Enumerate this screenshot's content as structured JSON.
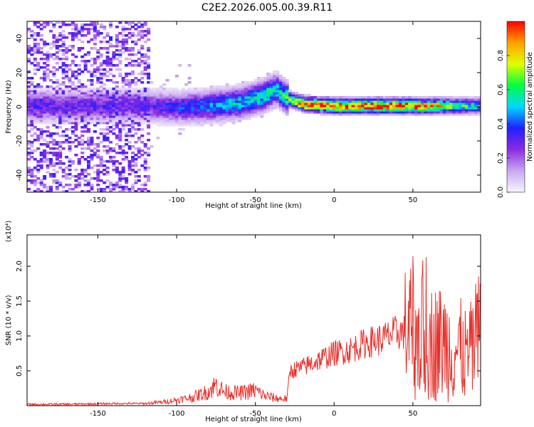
{
  "title": "C2E2.2026.005.00.39.R11",
  "colorbar": {
    "label": "Normalized spectral amplitude",
    "ticks": [
      "0.0",
      "0.2",
      "0.4",
      "0.6",
      "0.8"
    ],
    "tick_values": [
      0.0,
      0.2,
      0.4,
      0.6,
      0.8
    ],
    "range": [
      0,
      1
    ],
    "colormap": [
      "#f7f7ff",
      "#c8a8f0",
      "#8a2be2",
      "#2020ff",
      "#00d8ff",
      "#00ff40",
      "#e0ff00",
      "#ffa000",
      "#ff0000"
    ]
  },
  "chart_data": [
    {
      "type": "heatmap",
      "title": "C2E2.2026.005.00.39.R11",
      "xlabel": "Height of straight line (km)",
      "ylabel": "Frequency (Hz)",
      "xlim": [
        -195,
        93
      ],
      "ylim": [
        -50,
        50
      ],
      "xticks": [
        -150,
        -100,
        -50,
        0,
        50
      ],
      "yticks": [
        -40,
        -20,
        0,
        20,
        40
      ],
      "xtick_labels": [
        "-150",
        "-100",
        "-50",
        "0",
        "50"
      ],
      "ytick_labels": [
        "-40",
        "-20",
        "0",
        "20",
        "40"
      ],
      "grid": false,
      "ridge": {
        "description_points_x": [
          -160,
          -120,
          -100,
          -80,
          -60,
          -45,
          -38,
          -30,
          -20,
          0,
          20,
          50,
          70,
          93
        ],
        "frequency_hz": [
          0,
          0,
          -1,
          0,
          2,
          6,
          10,
          4,
          1,
          0,
          0,
          0,
          0,
          0
        ],
        "amplitude": [
          0.3,
          0.3,
          0.35,
          0.45,
          0.5,
          0.55,
          0.5,
          0.6,
          0.9,
          0.9,
          0.95,
          0.95,
          0.7,
          0.5
        ]
      }
    },
    {
      "type": "line",
      "xlabel": "Height of straight line (km)",
      "ylabel": "SNR (10 * v/v)",
      "y_multiplier": "(x10⁴)",
      "xlim": [
        -195,
        93
      ],
      "ylim": [
        0,
        2.45
      ],
      "xticks": [
        -150,
        -100,
        -50,
        0,
        50
      ],
      "yticks": [
        0.5,
        1.0,
        1.5,
        2.0
      ],
      "xtick_labels": [
        "-150",
        "-100",
        "-50",
        "0",
        "50"
      ],
      "ytick_labels": [
        "0.5",
        "1.0",
        "1.5",
        "2.0"
      ],
      "grid": false,
      "series": [
        {
          "color": "#e8302a",
          "x": [
            -195,
            -170,
            -140,
            -120,
            -110,
            -100,
            -90,
            -80,
            -75,
            -70,
            -60,
            -50,
            -45,
            -40,
            -35,
            -30,
            -28,
            -20,
            -10,
            0,
            10,
            20,
            30,
            40,
            45,
            50,
            55,
            60,
            65,
            70,
            75,
            80,
            85,
            90,
            93
          ],
          "y": [
            0.02,
            0.02,
            0.03,
            0.03,
            0.05,
            0.08,
            0.12,
            0.2,
            0.3,
            0.2,
            0.18,
            0.22,
            0.15,
            0.12,
            0.1,
            0.1,
            0.5,
            0.55,
            0.65,
            0.75,
            0.8,
            0.9,
            0.95,
            1.05,
            1.05,
            1.1,
            1.0,
            0.9,
            0.9,
            0.9,
            0.8,
            0.8,
            0.7,
            0.9,
            1.05
          ]
        }
      ]
    }
  ]
}
